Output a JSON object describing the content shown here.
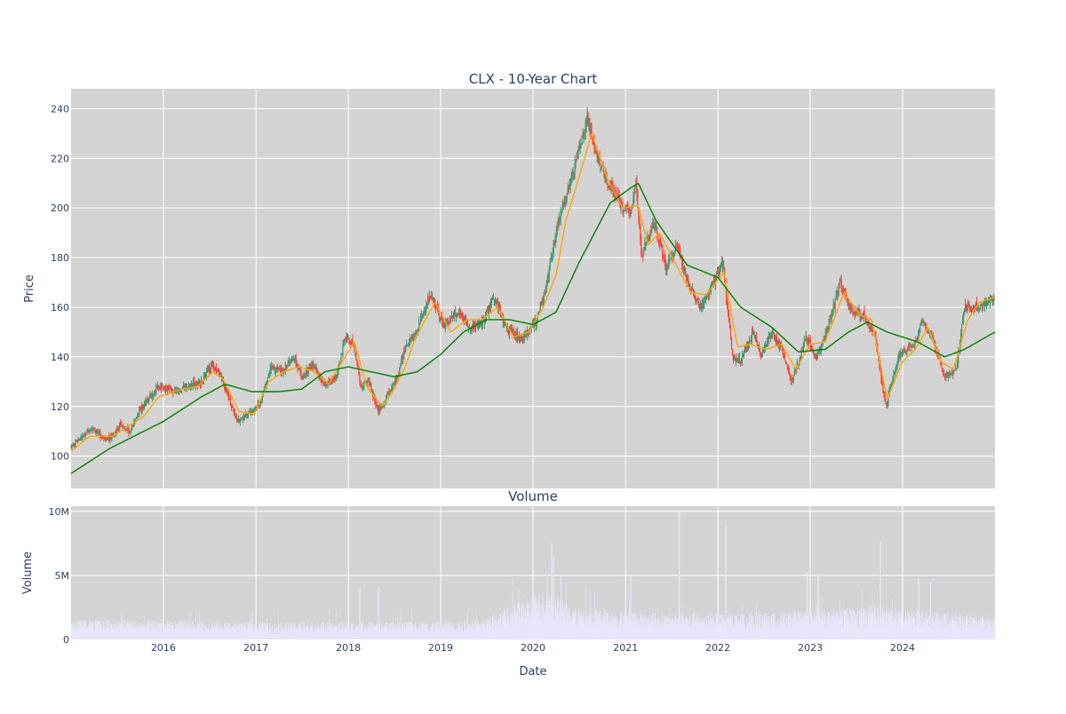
{
  "chart_data": [
    {
      "type": "candlestick",
      "title": "CLX - 10-Year Chart",
      "xlabel": "",
      "ylabel": "Price",
      "ylim": [
        87,
        248
      ],
      "yticks": [
        100,
        120,
        140,
        160,
        180,
        200,
        220,
        240
      ],
      "x_range": [
        "2015-01-01",
        "2024-12-31"
      ],
      "grid": true,
      "colors": {
        "background": "#d3d3d3",
        "up": "#3d9970",
        "down": "#ff4136",
        "ma_short": "#ffa500",
        "ma_long": "#008000",
        "grid": "#ffffff",
        "text": "#2a3f5f"
      },
      "close_keypoints": [
        [
          "2015-01-01",
          103
        ],
        [
          "2015-02-15",
          108
        ],
        [
          "2015-04-01",
          111
        ],
        [
          "2015-05-15",
          106
        ],
        [
          "2015-06-15",
          108
        ],
        [
          "2015-07-15",
          113
        ],
        [
          "2015-08-20",
          110
        ],
        [
          "2015-10-15",
          121
        ],
        [
          "2015-12-15",
          128
        ],
        [
          "2016-02-15",
          126
        ],
        [
          "2016-04-15",
          129
        ],
        [
          "2016-06-01",
          130
        ],
        [
          "2016-07-10",
          137
        ],
        [
          "2016-08-15",
          132
        ],
        [
          "2016-09-15",
          124
        ],
        [
          "2016-10-20",
          114
        ],
        [
          "2016-12-15",
          118
        ],
        [
          "2017-01-20",
          122
        ],
        [
          "2017-03-01",
          136
        ],
        [
          "2017-04-15",
          134
        ],
        [
          "2017-06-01",
          140
        ],
        [
          "2017-07-01",
          132
        ],
        [
          "2017-08-15",
          137
        ],
        [
          "2017-10-01",
          128
        ],
        [
          "2017-11-15",
          132
        ],
        [
          "2017-12-20",
          148
        ],
        [
          "2018-01-20",
          145
        ],
        [
          "2018-02-20",
          128
        ],
        [
          "2018-03-20",
          131
        ],
        [
          "2018-05-01",
          118
        ],
        [
          "2018-06-01",
          124
        ],
        [
          "2018-07-15",
          132
        ],
        [
          "2018-08-15",
          145
        ],
        [
          "2018-09-25",
          150
        ],
        [
          "2018-11-20",
          165
        ],
        [
          "2019-01-15",
          152
        ],
        [
          "2019-03-01",
          158
        ],
        [
          "2019-05-01",
          152
        ],
        [
          "2019-06-15",
          154
        ],
        [
          "2019-08-01",
          164
        ],
        [
          "2019-09-15",
          152
        ],
        [
          "2019-11-15",
          147
        ],
        [
          "2020-01-15",
          155
        ],
        [
          "2020-02-15",
          165
        ],
        [
          "2020-03-10",
          178
        ],
        [
          "2020-04-10",
          195
        ],
        [
          "2020-05-15",
          205
        ],
        [
          "2020-06-20",
          220
        ],
        [
          "2020-08-01",
          236
        ],
        [
          "2020-09-15",
          220
        ],
        [
          "2020-10-25",
          210
        ],
        [
          "2020-12-15",
          202
        ],
        [
          "2021-01-20",
          196
        ],
        [
          "2021-02-10",
          213
        ],
        [
          "2021-03-05",
          180
        ],
        [
          "2021-04-20",
          195
        ],
        [
          "2021-06-10",
          176
        ],
        [
          "2021-07-25",
          185
        ],
        [
          "2021-09-10",
          168
        ],
        [
          "2021-10-25",
          160
        ],
        [
          "2021-12-15",
          170
        ],
        [
          "2022-01-20",
          178
        ],
        [
          "2022-03-01",
          140
        ],
        [
          "2022-04-01",
          138
        ],
        [
          "2022-05-20",
          150
        ],
        [
          "2022-06-20",
          140
        ],
        [
          "2022-08-01",
          150
        ],
        [
          "2022-09-15",
          142
        ],
        [
          "2022-10-20",
          130
        ],
        [
          "2022-12-15",
          148
        ],
        [
          "2023-01-25",
          140
        ],
        [
          "2023-03-10",
          152
        ],
        [
          "2023-05-01",
          170
        ],
        [
          "2023-06-15",
          158
        ],
        [
          "2023-08-01",
          157
        ],
        [
          "2023-09-15",
          148
        ],
        [
          "2023-10-25",
          120
        ],
        [
          "2023-12-15",
          140
        ],
        [
          "2024-02-15",
          145
        ],
        [
          "2024-03-20",
          155
        ],
        [
          "2024-05-01",
          147
        ],
        [
          "2024-06-15",
          132
        ],
        [
          "2024-08-01",
          135
        ],
        [
          "2024-09-01",
          160
        ],
        [
          "2024-10-25",
          160
        ],
        [
          "2024-12-31",
          164
        ]
      ],
      "ma50_keypoints": [
        [
          "2015-01-01",
          102
        ],
        [
          "2015-03-15",
          108
        ],
        [
          "2015-06-15",
          108
        ],
        [
          "2015-08-15",
          112
        ],
        [
          "2015-10-15",
          116
        ],
        [
          "2015-12-15",
          124
        ],
        [
          "2016-03-15",
          127
        ],
        [
          "2016-05-15",
          128
        ],
        [
          "2016-07-15",
          134
        ],
        [
          "2016-08-25",
          131
        ],
        [
          "2016-10-25",
          118
        ],
        [
          "2016-12-25",
          117
        ],
        [
          "2017-02-20",
          130
        ],
        [
          "2017-04-20",
          134
        ],
        [
          "2017-06-20",
          136
        ],
        [
          "2017-08-20",
          134
        ],
        [
          "2017-10-15",
          129
        ],
        [
          "2017-12-01",
          137
        ],
        [
          "2018-01-25",
          146
        ],
        [
          "2018-03-15",
          128
        ],
        [
          "2018-05-15",
          120
        ],
        [
          "2018-06-25",
          126
        ],
        [
          "2018-08-10",
          135
        ],
        [
          "2018-09-25",
          148
        ],
        [
          "2018-12-10",
          162
        ],
        [
          "2019-02-10",
          150
        ],
        [
          "2019-04-15",
          155
        ],
        [
          "2019-06-15",
          155
        ],
        [
          "2019-08-15",
          160
        ],
        [
          "2019-10-15",
          148
        ],
        [
          "2019-12-15",
          150
        ],
        [
          "2020-02-10",
          160
        ],
        [
          "2020-04-01",
          173
        ],
        [
          "2020-05-10",
          195
        ],
        [
          "2020-06-30",
          212
        ],
        [
          "2020-08-20",
          230
        ],
        [
          "2020-10-20",
          212
        ],
        [
          "2020-12-20",
          200
        ],
        [
          "2021-02-20",
          201
        ],
        [
          "2021-03-31",
          185
        ],
        [
          "2021-05-15",
          190
        ],
        [
          "2021-07-15",
          178
        ],
        [
          "2021-09-15",
          166
        ],
        [
          "2021-11-15",
          165
        ],
        [
          "2022-01-25",
          174
        ],
        [
          "2022-03-20",
          144
        ],
        [
          "2022-05-10",
          145
        ],
        [
          "2022-07-10",
          143
        ],
        [
          "2022-09-10",
          145
        ],
        [
          "2022-11-05",
          135
        ],
        [
          "2022-12-31",
          145
        ],
        [
          "2023-03-01",
          146
        ],
        [
          "2023-05-15",
          166
        ],
        [
          "2023-07-15",
          157
        ],
        [
          "2023-09-01",
          155
        ],
        [
          "2023-11-01",
          123
        ],
        [
          "2023-12-31",
          138
        ],
        [
          "2024-02-20",
          143
        ],
        [
          "2024-04-10",
          152
        ],
        [
          "2024-06-01",
          138
        ],
        [
          "2024-07-20",
          135
        ],
        [
          "2024-09-15",
          155
        ],
        [
          "2024-10-31",
          162
        ],
        [
          "2024-12-31",
          164
        ]
      ],
      "ma200_keypoints": [
        [
          "2015-01-01",
          93
        ],
        [
          "2015-06-01",
          103
        ],
        [
          "2016-01-01",
          114
        ],
        [
          "2016-06-01",
          124
        ],
        [
          "2016-09-01",
          129
        ],
        [
          "2016-12-15",
          126
        ],
        [
          "2017-04-01",
          126
        ],
        [
          "2017-07-01",
          127
        ],
        [
          "2017-10-01",
          134
        ],
        [
          "2018-01-01",
          136
        ],
        [
          "2018-04-01",
          134
        ],
        [
          "2018-07-01",
          132
        ],
        [
          "2018-10-01",
          134
        ],
        [
          "2019-01-01",
          141
        ],
        [
          "2019-04-01",
          150
        ],
        [
          "2019-07-01",
          155
        ],
        [
          "2019-10-01",
          155
        ],
        [
          "2020-01-01",
          153
        ],
        [
          "2020-04-01",
          158
        ],
        [
          "2020-07-01",
          178
        ],
        [
          "2020-11-01",
          202
        ],
        [
          "2021-01-20",
          208
        ],
        [
          "2021-02-20",
          210
        ],
        [
          "2021-05-01",
          195
        ],
        [
          "2021-09-01",
          177
        ],
        [
          "2022-01-01",
          172
        ],
        [
          "2022-04-01",
          160
        ],
        [
          "2022-08-01",
          152
        ],
        [
          "2022-11-15",
          142
        ],
        [
          "2023-03-01",
          143
        ],
        [
          "2023-06-01",
          150
        ],
        [
          "2023-08-15",
          154
        ],
        [
          "2023-11-01",
          150
        ],
        [
          "2024-03-01",
          146
        ],
        [
          "2024-06-15",
          140
        ],
        [
          "2024-09-01",
          143
        ],
        [
          "2024-12-31",
          150
        ]
      ]
    },
    {
      "type": "bar",
      "title": "Volume",
      "xlabel": "Date",
      "ylabel": "Volume",
      "ylim": [
        0,
        10400000
      ],
      "yticks": [
        0,
        5000000,
        10000000
      ],
      "ytick_labels": [
        "0",
        "5M",
        "10M"
      ],
      "x_range": [
        "2015-01-01",
        "2024-12-31"
      ],
      "xticks": [
        "2016-01-01",
        "2017-01-01",
        "2018-01-01",
        "2019-01-01",
        "2020-01-01",
        "2021-01-01",
        "2022-01-01",
        "2023-01-01",
        "2024-01-01"
      ],
      "xtick_labels": [
        "2016",
        "2017",
        "2018",
        "2019",
        "2020",
        "2021",
        "2022",
        "2023",
        "2024"
      ],
      "colors": {
        "bar": "#e6e6fa",
        "background": "#d3d3d3"
      },
      "baseline_keypoints": [
        [
          "2015-01-01",
          1100000
        ],
        [
          "2017-06-01",
          900000
        ],
        [
          "2019-06-01",
          1000000
        ],
        [
          "2020-03-01",
          2800000
        ],
        [
          "2020-06-01",
          1700000
        ],
        [
          "2021-06-01",
          1400000
        ],
        [
          "2022-06-01",
          1400000
        ],
        [
          "2023-10-15",
          1800000
        ],
        [
          "2024-12-31",
          1200000
        ]
      ],
      "spikes": [
        [
          "2020-03-15",
          7500000
        ],
        [
          "2021-08-01",
          10000000
        ],
        [
          "2022-02-01",
          8800000
        ],
        [
          "2023-10-05",
          7600000
        ],
        [
          "2020-02-25",
          5000000
        ],
        [
          "2020-04-20",
          5000000
        ],
        [
          "2021-01-20",
          5000000
        ],
        [
          "2022-12-20",
          5200000
        ],
        [
          "2023-02-01",
          5100000
        ],
        [
          "2024-03-05",
          4800000
        ],
        [
          "2024-04-20",
          4500000
        ],
        [
          "2018-02-15",
          4000000
        ],
        [
          "2018-05-01",
          4100000
        ]
      ]
    }
  ]
}
